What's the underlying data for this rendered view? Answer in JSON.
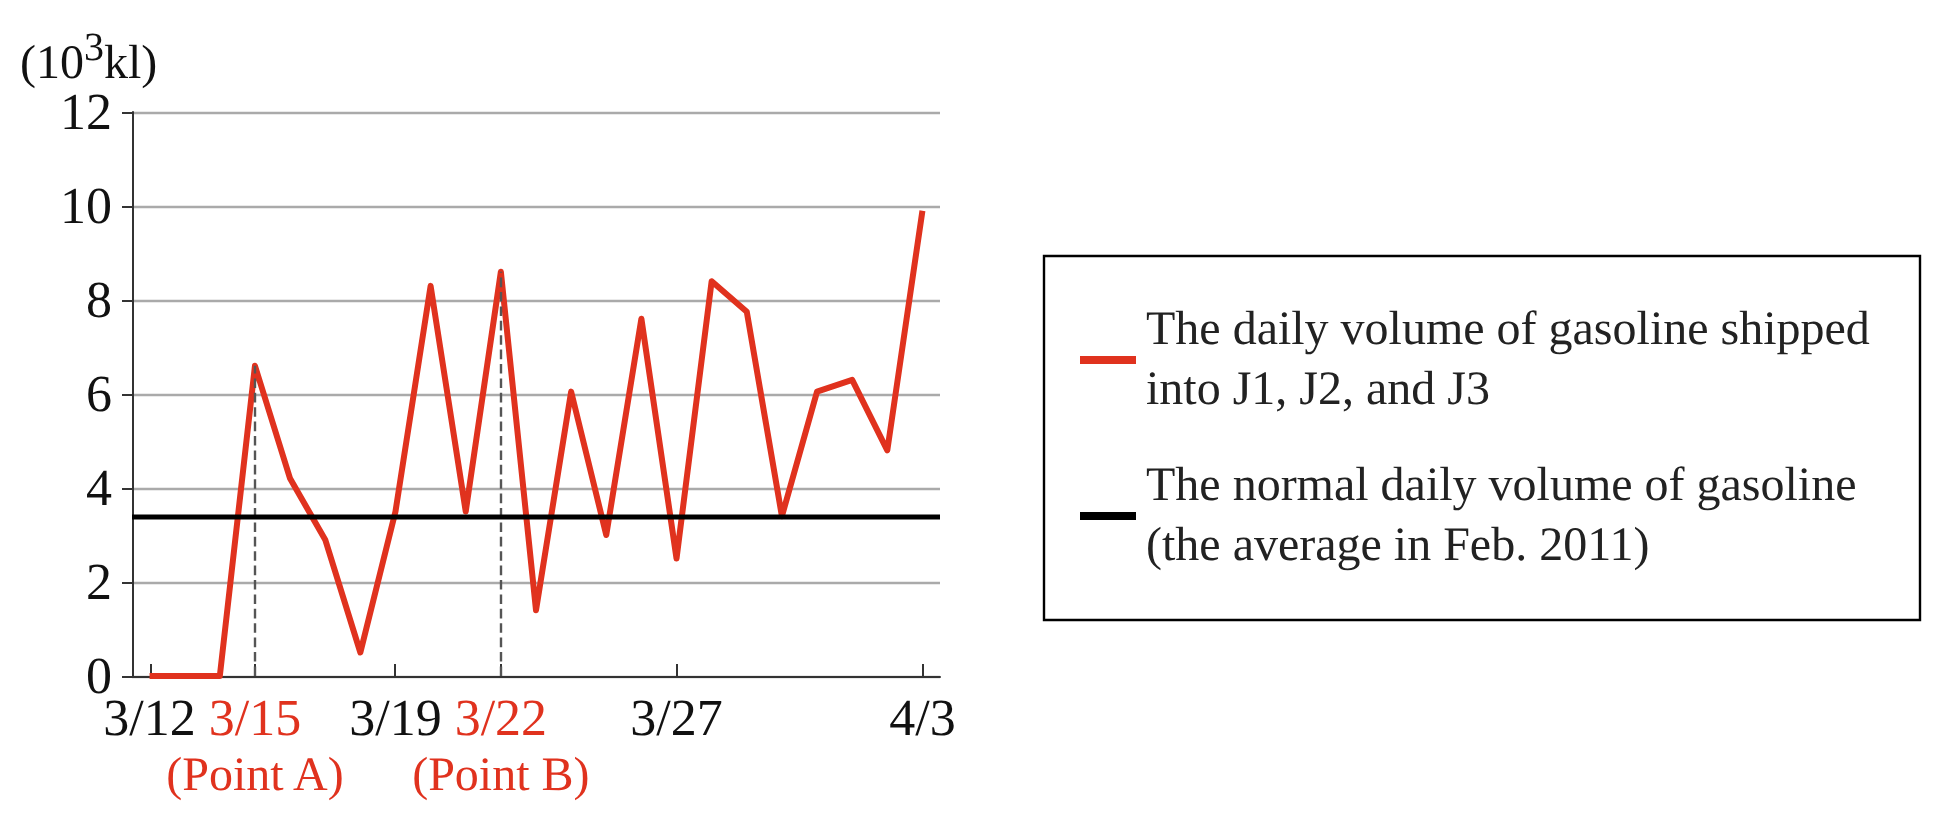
{
  "chart_data": {
    "type": "line",
    "ylabel": "(10$^{3}$kl)",
    "categories": [
      "3/12",
      null,
      null,
      "3/15",
      null,
      null,
      null,
      "3/19",
      null,
      null,
      "3/22",
      null,
      null,
      null,
      null,
      "3/27",
      null,
      null,
      null,
      null,
      null,
      null,
      "4/3"
    ],
    "series": [
      {
        "name": "The daily volume of gasoline shipped into J1, J2, and J3",
        "color": "#e0321e",
        "values": [
          0,
          0,
          0,
          6.6,
          4.2,
          2.9,
          0.5,
          3.5,
          8.3,
          3.5,
          8.6,
          1.4,
          6.05,
          3.0,
          7.6,
          2.5,
          8.4,
          7.75,
          3.4,
          6.05,
          6.3,
          4.8,
          9.9
        ]
      }
    ],
    "ylim": [
      0,
      12
    ],
    "yticks": [
      0,
      2,
      4,
      6,
      8,
      10,
      12
    ],
    "grid": "y",
    "legend": "right",
    "ref_lines": [
      {
        "axis": "y",
        "value": 3.4,
        "label": "The normal daily volume of gasoline (the average in Feb. 2011)",
        "color": "#000000"
      },
      {
        "axis": "x",
        "value": "3/15",
        "color": "#555555",
        "line_style": "dashed"
      },
      {
        "axis": "x",
        "value": "3/22",
        "color": "#555555",
        "line_style": "dashed"
      }
    ],
    "annotations": [
      "(Point A)",
      "(Point B)"
    ]
  }
}
